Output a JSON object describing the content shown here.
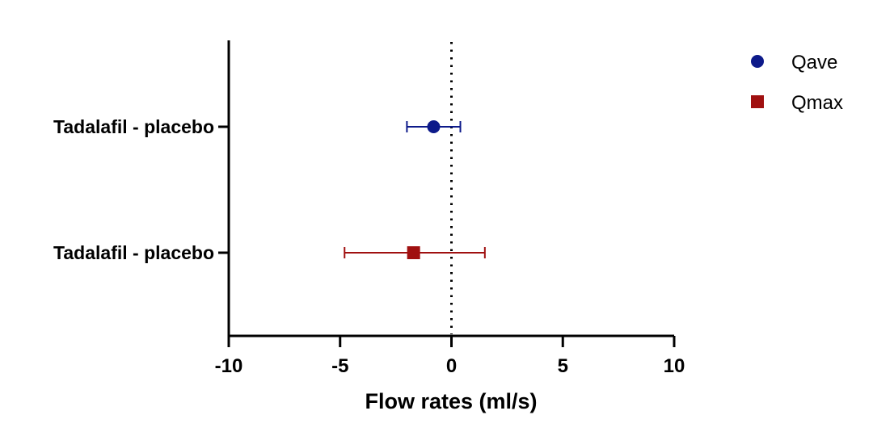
{
  "chart_data": {
    "type": "scatter",
    "title": "",
    "xlabel": "Flow rates (ml/s)",
    "ylabel": "",
    "xlim": [
      -10,
      10
    ],
    "xticks": [
      "-10",
      "-5",
      "0",
      "5",
      "10"
    ],
    "reference_line": {
      "x": 0,
      "style": "dotted"
    },
    "grid": false,
    "legend_position": "top-right",
    "categories": [
      "Tadalafil - placebo",
      "Tadalafil - placebo"
    ],
    "series": [
      {
        "name": "Qave",
        "marker": "circle",
        "color": "#0d1a8a",
        "category_index": 0,
        "estimate": -0.8,
        "ci_low": -2.0,
        "ci_high": 0.4
      },
      {
        "name": "Qmax",
        "marker": "square",
        "color": "#a01010",
        "category_index": 1,
        "estimate": -1.7,
        "ci_low": -4.8,
        "ci_high": 1.5
      }
    ]
  }
}
